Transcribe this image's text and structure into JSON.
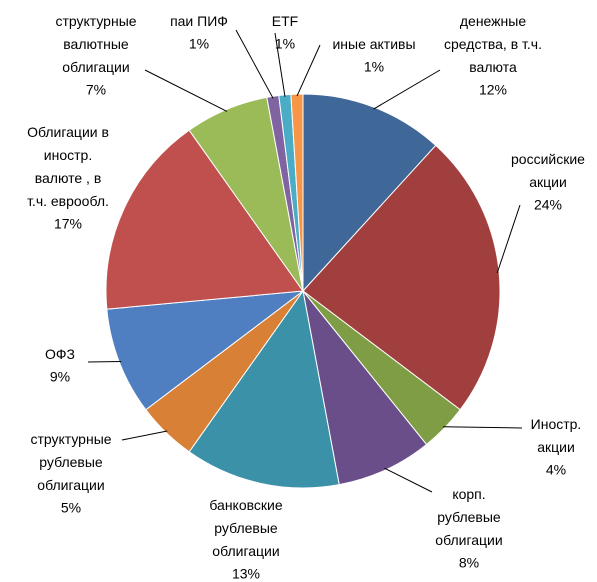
{
  "chart_data": {
    "type": "pie",
    "categories": [
      "денежные средства, в т.ч. валюта",
      "российские акции",
      "Иностр. акции",
      "корп. рублевые облигации",
      "банковские рублевые облигации",
      "структурные рублевые облигации",
      "ОФЗ",
      "Облигации в иностр. валюте , в т.ч. еврообл.",
      "структурные валютные облигации",
      "паи ПИФ",
      "ETF",
      "иные активы"
    ],
    "values": [
      12,
      24,
      4,
      8,
      13,
      5,
      9,
      17,
      7,
      1,
      1,
      1
    ],
    "value_labels": [
      "12%",
      "24%",
      "4%",
      "8%",
      "13%",
      "5%",
      "9%",
      "17%",
      "7%",
      "1%",
      "1%",
      "1%"
    ],
    "colors": [
      "#3f6797",
      "#a03f3d",
      "#7e9d45",
      "#6a4e8a",
      "#3b91a8",
      "#d88036",
      "#4f7fc0",
      "#c0504d",
      "#9bbb59",
      "#8064a2",
      "#4bacc6",
      "#f79646"
    ]
  }
}
